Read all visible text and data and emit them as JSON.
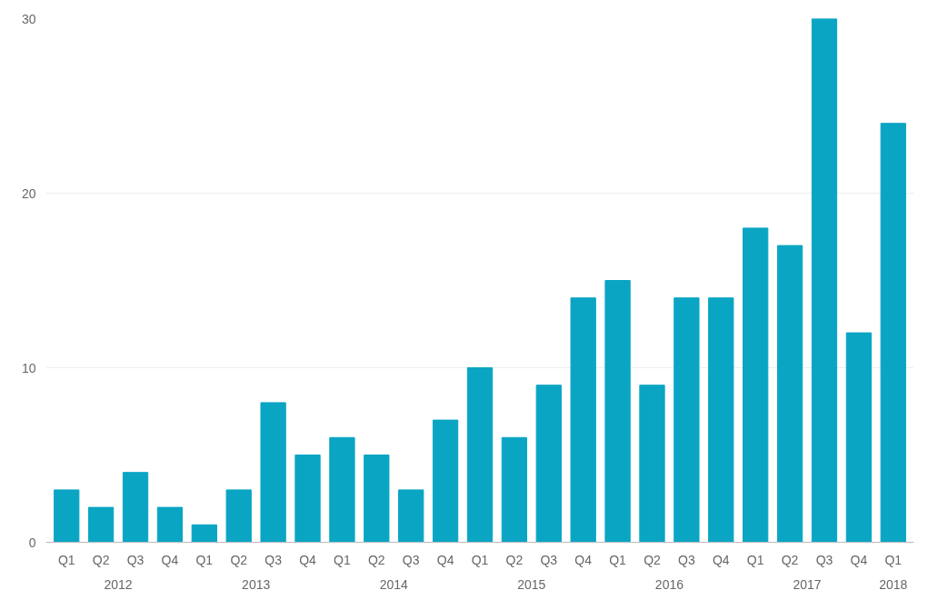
{
  "chart_data": {
    "type": "bar",
    "categories": [
      "Q1",
      "Q2",
      "Q3",
      "Q4",
      "Q1",
      "Q2",
      "Q3",
      "Q4",
      "Q1",
      "Q2",
      "Q3",
      "Q4",
      "Q1",
      "Q2",
      "Q3",
      "Q4",
      "Q1",
      "Q2",
      "Q3",
      "Q4",
      "Q1",
      "Q2",
      "Q3",
      "Q4",
      "Q1"
    ],
    "values": [
      3,
      2,
      4,
      2,
      1,
      3,
      8,
      5,
      6,
      5,
      3,
      7,
      10,
      6,
      9,
      14,
      15,
      9,
      14,
      14,
      18,
      17,
      30,
      12,
      24
    ],
    "color": "#0ba5c4",
    "ylim": [
      0,
      30
    ],
    "yticks": [
      0,
      10,
      20,
      30
    ],
    "grid": "y",
    "annotations": [
      "2012",
      "2013",
      "2014",
      "2015",
      "2016",
      "2017",
      "2018"
    ]
  }
}
